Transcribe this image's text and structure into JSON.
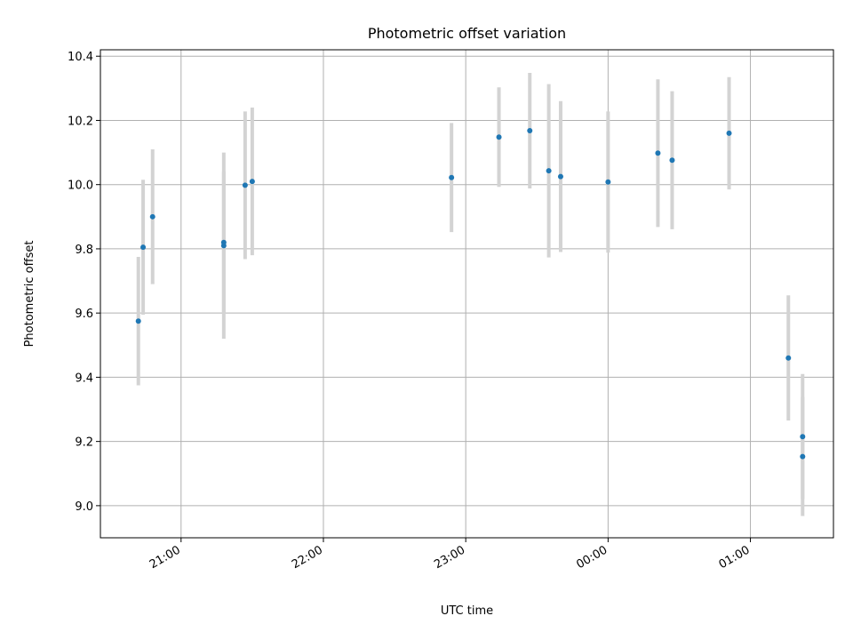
{
  "chart_data": {
    "type": "scatter",
    "title": "Photometric offset variation",
    "xlabel": "UTC time",
    "ylabel": "Photometric offset",
    "x_is_time": true,
    "xlim": [
      "20:26",
      "01:35"
    ],
    "ylim": [
      8.9,
      10.42
    ],
    "xticks": [
      {
        "t": "21:00",
        "label": "21:00"
      },
      {
        "t": "22:00",
        "label": "22:00"
      },
      {
        "t": "23:00",
        "label": "23:00"
      },
      {
        "t": "00:00",
        "label": "00:00"
      },
      {
        "t": "01:00",
        "label": "01:00"
      }
    ],
    "yticks": [
      9.0,
      9.2,
      9.4,
      9.6,
      9.8,
      10.0,
      10.2,
      10.4
    ],
    "ytick_labels": [
      "9.0",
      "9.2",
      "9.4",
      "9.6",
      "9.8",
      "10.0",
      "10.2",
      "10.4"
    ],
    "grid": true,
    "marker_color": "#1f77b4",
    "errorbar_color": "#d3d3d3",
    "points": [
      {
        "t": "20:42",
        "y": 9.575,
        "err": 0.2
      },
      {
        "t": "20:44",
        "y": 9.805,
        "err": 0.21
      },
      {
        "t": "20:48",
        "y": 9.9,
        "err": 0.21
      },
      {
        "t": "21:18",
        "y": 9.81,
        "err": 0.29
      },
      {
        "t": "21:18",
        "y": 9.82,
        "err": 0.22
      },
      {
        "t": "21:27",
        "y": 9.998,
        "err": 0.23
      },
      {
        "t": "21:30",
        "y": 10.01,
        "err": 0.23
      },
      {
        "t": "22:54",
        "y": 10.022,
        "err": 0.17
      },
      {
        "t": "23:14",
        "y": 10.148,
        "err": 0.155
      },
      {
        "t": "23:27",
        "y": 10.168,
        "err": 0.18
      },
      {
        "t": "23:35",
        "y": 10.043,
        "err": 0.27
      },
      {
        "t": "23:40",
        "y": 10.025,
        "err": 0.235
      },
      {
        "t": "00:00",
        "y": 10.008,
        "err": 0.22
      },
      {
        "t": "00:21",
        "y": 10.098,
        "err": 0.23
      },
      {
        "t": "00:27",
        "y": 10.076,
        "err": 0.215
      },
      {
        "t": "00:51",
        "y": 10.16,
        "err": 0.175
      },
      {
        "t": "01:16",
        "y": 9.46,
        "err": 0.195
      },
      {
        "t": "01:22",
        "y": 9.215,
        "err": 0.195
      },
      {
        "t": "01:22",
        "y": 9.153,
        "err": 0.185
      }
    ]
  }
}
